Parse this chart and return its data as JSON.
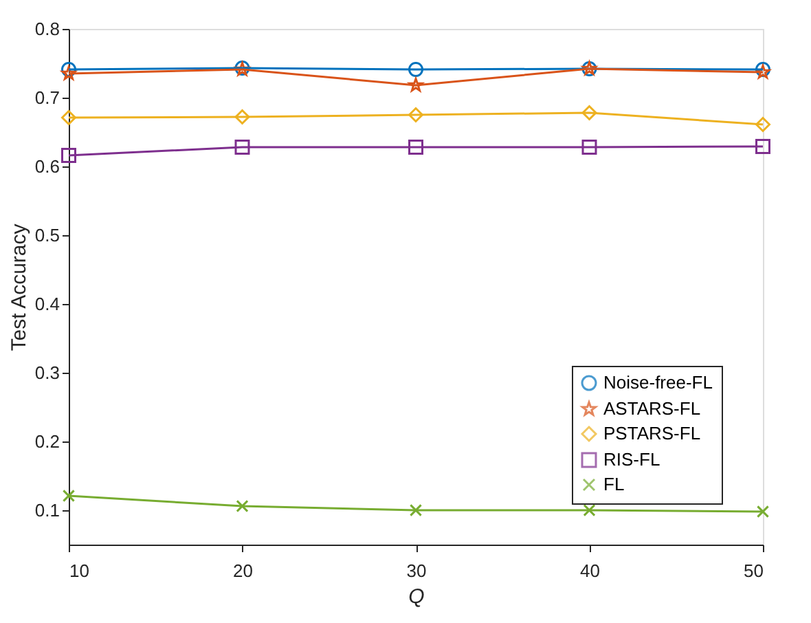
{
  "chart_data": {
    "type": "line",
    "xlabel": "Q",
    "ylabel": "Test Accuracy",
    "x": [
      10,
      20,
      30,
      40,
      50
    ],
    "xlim": [
      10,
      50
    ],
    "xticks": [
      10,
      20,
      30,
      40,
      50
    ],
    "ylim": [
      0.05,
      0.8
    ],
    "yticks": [
      0.1,
      0.2,
      0.3,
      0.4,
      0.5,
      0.6,
      0.7,
      0.8
    ],
    "grid": false,
    "legend": "bottom right",
    "line_style": "solid",
    "series": [
      {
        "name": "Noise-free-FL",
        "color": "#0072bd",
        "marker": "circle",
        "values": [
          0.741,
          0.743,
          0.741,
          0.742,
          0.741
        ]
      },
      {
        "name": "ASTARS-FL",
        "color": "#d95319",
        "marker": "star",
        "values": [
          0.735,
          0.741,
          0.718,
          0.742,
          0.737
        ]
      },
      {
        "name": "PSTARS-FL",
        "color": "#edb120",
        "marker": "diamond",
        "values": [
          0.671,
          0.672,
          0.675,
          0.678,
          0.661
        ]
      },
      {
        "name": "RIS-FL",
        "color": "#7e2f8e",
        "marker": "square",
        "values": [
          0.616,
          0.628,
          0.628,
          0.628,
          0.629
        ]
      },
      {
        "name": "FL",
        "color": "#77ac30",
        "marker": "cross",
        "values": [
          0.121,
          0.106,
          0.1,
          0.1,
          0.098
        ]
      }
    ]
  }
}
